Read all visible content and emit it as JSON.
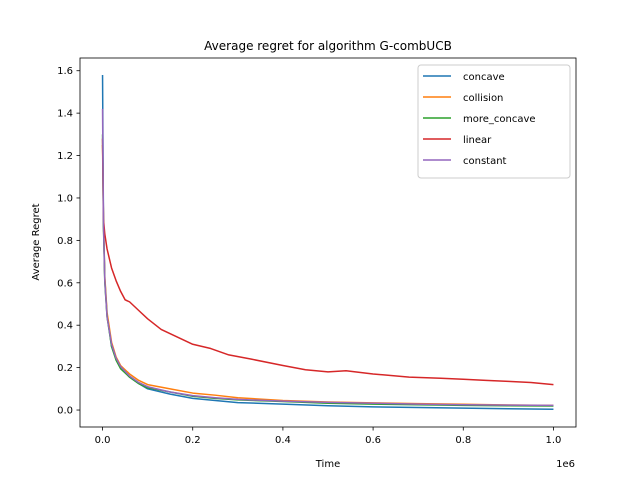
{
  "chart_data": {
    "type": "line",
    "title": "Average regret for algorithm G-combUCB",
    "xlabel": "Time",
    "ylabel": "Average Regret",
    "x_offset_label": "1e6",
    "xlim": [
      -50000,
      1050000
    ],
    "ylim": [
      -0.08,
      1.66
    ],
    "x_ticks": [
      0,
      200000,
      400000,
      600000,
      800000,
      1000000
    ],
    "x_tick_labels": [
      "0.0",
      "0.2",
      "0.4",
      "0.6",
      "0.8",
      "1.0"
    ],
    "y_ticks": [
      0.0,
      0.2,
      0.4,
      0.6,
      0.8,
      1.0,
      1.2,
      1.4,
      1.6
    ],
    "y_tick_labels": [
      "0.0",
      "0.2",
      "0.4",
      "0.6",
      "0.8",
      "1.0",
      "1.2",
      "1.4",
      "1.6"
    ],
    "grid": false,
    "legend_position": "top-right",
    "series": [
      {
        "name": "concave",
        "color": "#1f77b4",
        "x": [
          0,
          2000,
          5000,
          10000,
          20000,
          30000,
          40000,
          60000,
          80000,
          100000,
          150000,
          200000,
          250000,
          300000,
          400000,
          500000,
          600000,
          700000,
          800000,
          900000,
          1000000
        ],
        "y": [
          1.58,
          0.9,
          0.62,
          0.45,
          0.3,
          0.24,
          0.2,
          0.155,
          0.125,
          0.1,
          0.075,
          0.055,
          0.045,
          0.035,
          0.028,
          0.02,
          0.015,
          0.012,
          0.009,
          0.006,
          0.004
        ]
      },
      {
        "name": "collision",
        "color": "#ff7f0e",
        "x": [
          0,
          2000,
          5000,
          10000,
          20000,
          30000,
          40000,
          60000,
          80000,
          100000,
          150000,
          200000,
          250000,
          300000,
          400000,
          500000,
          600000,
          700000,
          800000,
          900000,
          1000000
        ],
        "y": [
          1.25,
          0.88,
          0.63,
          0.46,
          0.32,
          0.25,
          0.21,
          0.17,
          0.14,
          0.12,
          0.1,
          0.08,
          0.07,
          0.058,
          0.045,
          0.038,
          0.034,
          0.03,
          0.027,
          0.024,
          0.022
        ]
      },
      {
        "name": "more_concave",
        "color": "#2ca02c",
        "x": [
          0,
          2000,
          5000,
          10000,
          20000,
          30000,
          40000,
          60000,
          80000,
          100000,
          150000,
          200000,
          250000,
          300000,
          400000,
          500000,
          600000,
          700000,
          800000,
          900000,
          1000000
        ],
        "y": [
          1.3,
          0.87,
          0.6,
          0.44,
          0.3,
          0.235,
          0.195,
          0.155,
          0.125,
          0.105,
          0.085,
          0.065,
          0.055,
          0.048,
          0.04,
          0.032,
          0.028,
          0.025,
          0.022,
          0.02,
          0.019
        ]
      },
      {
        "name": "linear",
        "color": "#d62728",
        "x": [
          0,
          2000,
          5000,
          10000,
          20000,
          30000,
          40000,
          50000,
          60000,
          80000,
          100000,
          130000,
          160000,
          200000,
          240000,
          280000,
          330000,
          400000,
          450000,
          500000,
          540000,
          600000,
          680000,
          750000,
          800000,
          850000,
          900000,
          950000,
          1000000
        ],
        "y": [
          1.28,
          0.9,
          0.83,
          0.76,
          0.67,
          0.61,
          0.56,
          0.52,
          0.51,
          0.47,
          0.43,
          0.38,
          0.35,
          0.31,
          0.29,
          0.26,
          0.24,
          0.21,
          0.19,
          0.18,
          0.185,
          0.17,
          0.155,
          0.15,
          0.145,
          0.14,
          0.135,
          0.13,
          0.12
        ]
      },
      {
        "name": "constant",
        "color": "#9467bd",
        "x": [
          0,
          2000,
          5000,
          10000,
          20000,
          30000,
          40000,
          60000,
          80000,
          100000,
          150000,
          200000,
          250000,
          300000,
          400000,
          500000,
          600000,
          700000,
          800000,
          900000,
          1000000
        ],
        "y": [
          1.42,
          0.88,
          0.61,
          0.44,
          0.31,
          0.245,
          0.205,
          0.16,
          0.13,
          0.11,
          0.085,
          0.068,
          0.058,
          0.05,
          0.042,
          0.036,
          0.032,
          0.028,
          0.025,
          0.023,
          0.022
        ]
      }
    ]
  }
}
